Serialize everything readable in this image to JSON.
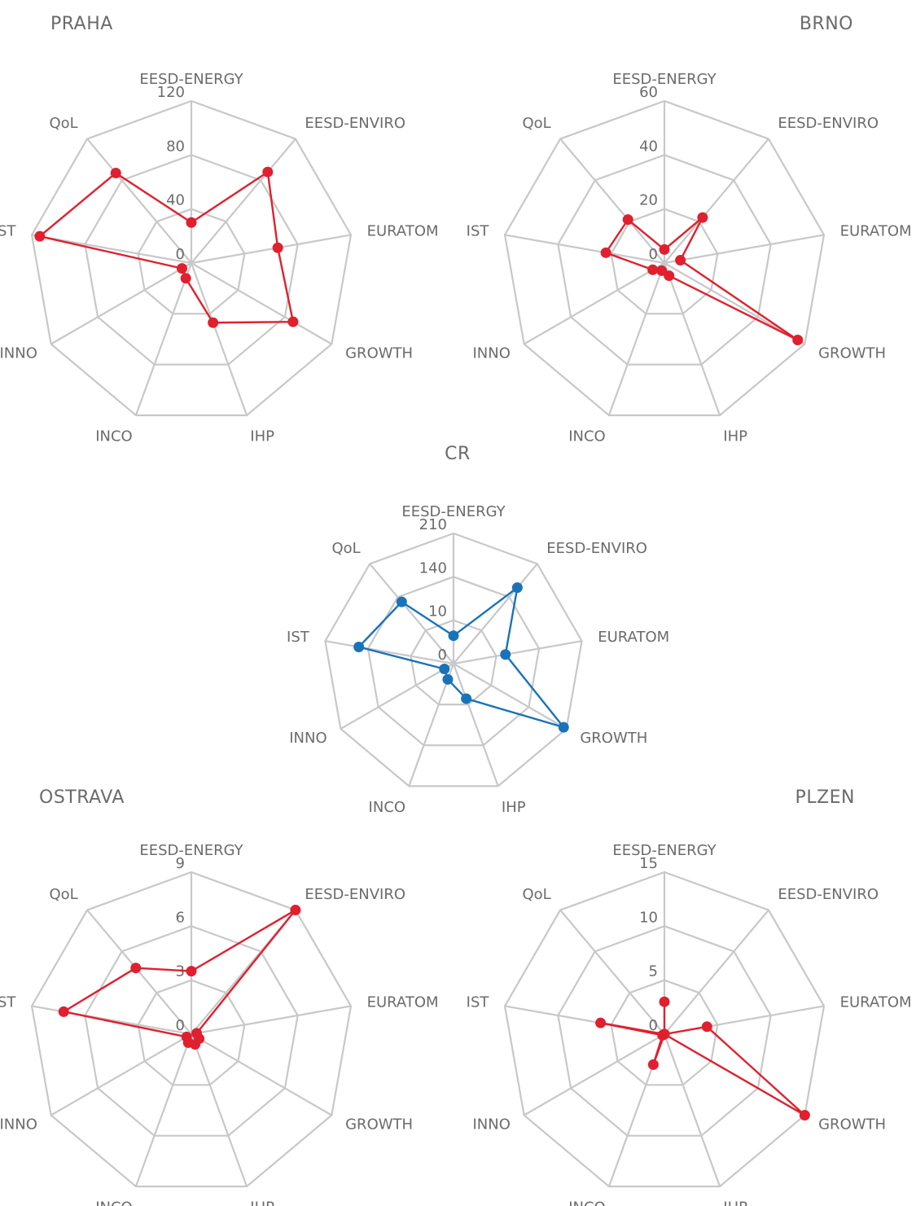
{
  "colors": {
    "grid": "#c8c8c8",
    "text": "#6b6b6b",
    "red": "#e0202e",
    "blue": "#1a73b8"
  },
  "chart_data": [
    {
      "type": "radar",
      "title": "PRAHA",
      "color": "#e0202e",
      "categories": [
        "EESD-ENERGY",
        "EESD-ENVIRO",
        "EURATOM",
        "GROWTH",
        "IHP",
        "INCO",
        "INNO",
        "IST",
        "QoL"
      ],
      "ticks": [
        "0",
        "40",
        "80",
        "120"
      ],
      "rmax": 120,
      "values": [
        30,
        88,
        65,
        87,
        47,
        12,
        8,
        114,
        87
      ]
    },
    {
      "type": "radar",
      "title": "BRNO",
      "color": "#e0202e",
      "categories": [
        "EESD-ENERGY",
        "EESD-ENVIRO",
        "EURATOM",
        "GROWTH",
        "IHP",
        "INCO",
        "INNO",
        "IST",
        "QoL"
      ],
      "ticks": [
        "0",
        "20",
        "40",
        "60"
      ],
      "rmax": 60,
      "values": [
        5,
        22,
        6,
        57,
        5,
        3,
        5,
        22,
        21
      ]
    },
    {
      "type": "radar",
      "title": "CR",
      "color": "#1a73b8",
      "categories": [
        "EESD-ENERGY",
        "EESD-ENVIRO",
        "EURATOM",
        "GROWTH",
        "IHP",
        "INCO",
        "INNO",
        "IST",
        "QoL"
      ],
      "ticks": [
        "0",
        "10",
        "140",
        "210"
      ],
      "rmax": 210,
      "values": [
        45,
        160,
        85,
        205,
        60,
        27,
        17,
        155,
        130
      ]
    },
    {
      "type": "radar",
      "title": "OSTRAVA",
      "color": "#e0202e",
      "categories": [
        "EESD-ENERGY",
        "EESD-ENVIRO",
        "EURATOM",
        "GROWTH",
        "IHP",
        "INCO",
        "INNO",
        "IST",
        "QoL"
      ],
      "ticks": [
        "0",
        "3",
        "6",
        "9"
      ],
      "rmax": 9,
      "values": [
        3.5,
        9,
        0.3,
        0.5,
        0.6,
        0.5,
        0.3,
        7.2,
        4.8
      ]
    },
    {
      "type": "radar",
      "title": "PLZEN",
      "color": "#e0202e",
      "categories": [
        "EESD-ENERGY",
        "EESD-ENVIRO",
        "EURATOM",
        "GROWTH",
        "IHP",
        "INCO",
        "INNO",
        "IST",
        "QoL"
      ],
      "ticks": [
        "0",
        "5",
        "10",
        "15"
      ],
      "rmax": 15,
      "values": [
        3,
        0,
        4,
        15,
        0,
        3,
        0.2,
        6,
        0
      ]
    }
  ]
}
